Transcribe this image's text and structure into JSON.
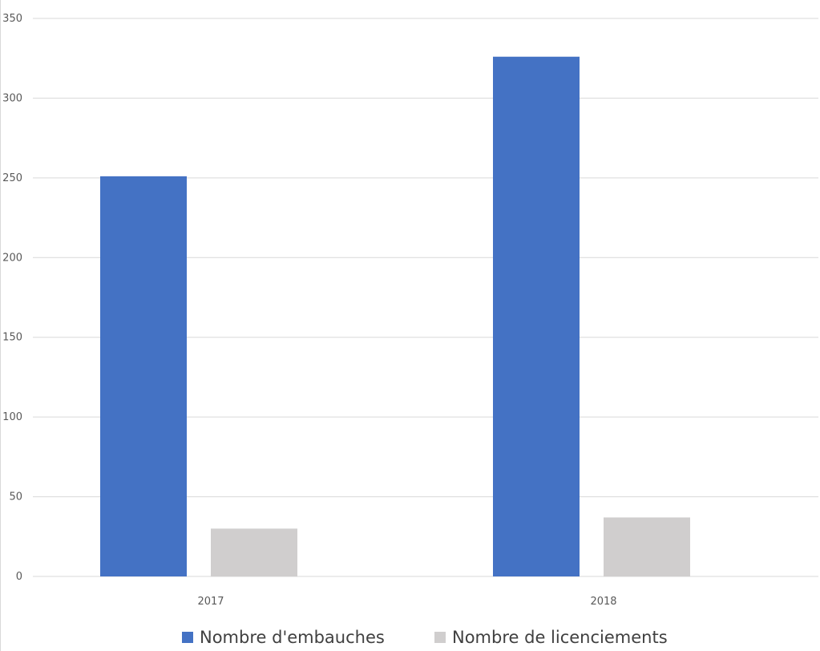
{
  "chart_data": {
    "type": "bar",
    "title": "",
    "xlabel": "",
    "ylabel": "",
    "categories": [
      "2017",
      "2018"
    ],
    "series": [
      {
        "name": "Nombre d'embauches",
        "values": [
          251,
          326
        ],
        "color": "#4472c4"
      },
      {
        "name": "Nombre de licenciements",
        "values": [
          30,
          37
        ],
        "color": "#d0cece"
      }
    ],
    "ylim": [
      0,
      350
    ],
    "yticks": [
      "0",
      "50",
      "100",
      "150",
      "200",
      "250",
      "300",
      "350"
    ],
    "grid": true,
    "gridColor": "#d9d9d9",
    "legend": "bottom"
  }
}
